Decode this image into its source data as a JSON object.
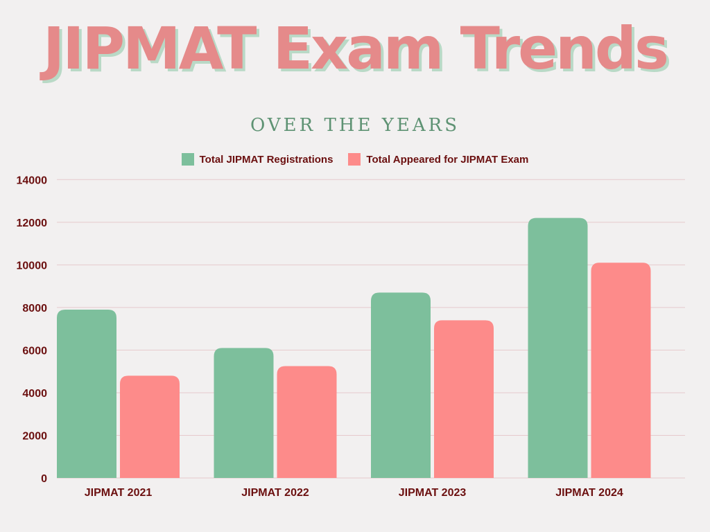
{
  "header": {
    "title": "JIPMAT Exam Trends",
    "subtitle": "OVER THE YEARS"
  },
  "chart_data": {
    "type": "bar",
    "title": "JIPMAT Exam Trends",
    "subtitle": "OVER THE YEARS",
    "categories": [
      "JIPMAT 2021",
      "JIPMAT 2022",
      "JIPMAT 2023",
      "JIPMAT 2024"
    ],
    "series": [
      {
        "name": "Total JIPMAT Registrations",
        "color": "#7dbf9c",
        "values": [
          7900,
          6100,
          8700,
          12200
        ]
      },
      {
        "name": "Total Appeared for JIPMAT Exam",
        "color": "#fd8b8a",
        "values": [
          4800,
          5250,
          7400,
          10100
        ]
      }
    ],
    "ylim": [
      0,
      14000
    ],
    "yticks": [
      "0",
      "2000",
      "4000",
      "6000",
      "8000",
      "10000",
      "12000",
      "14000"
    ],
    "xlabel": "",
    "ylabel": "",
    "grid": true,
    "legend": "top-center",
    "colors": {
      "title": "#e58a8a",
      "axis_text": "#6b0f0f",
      "grid": "#e6c9cc"
    }
  }
}
